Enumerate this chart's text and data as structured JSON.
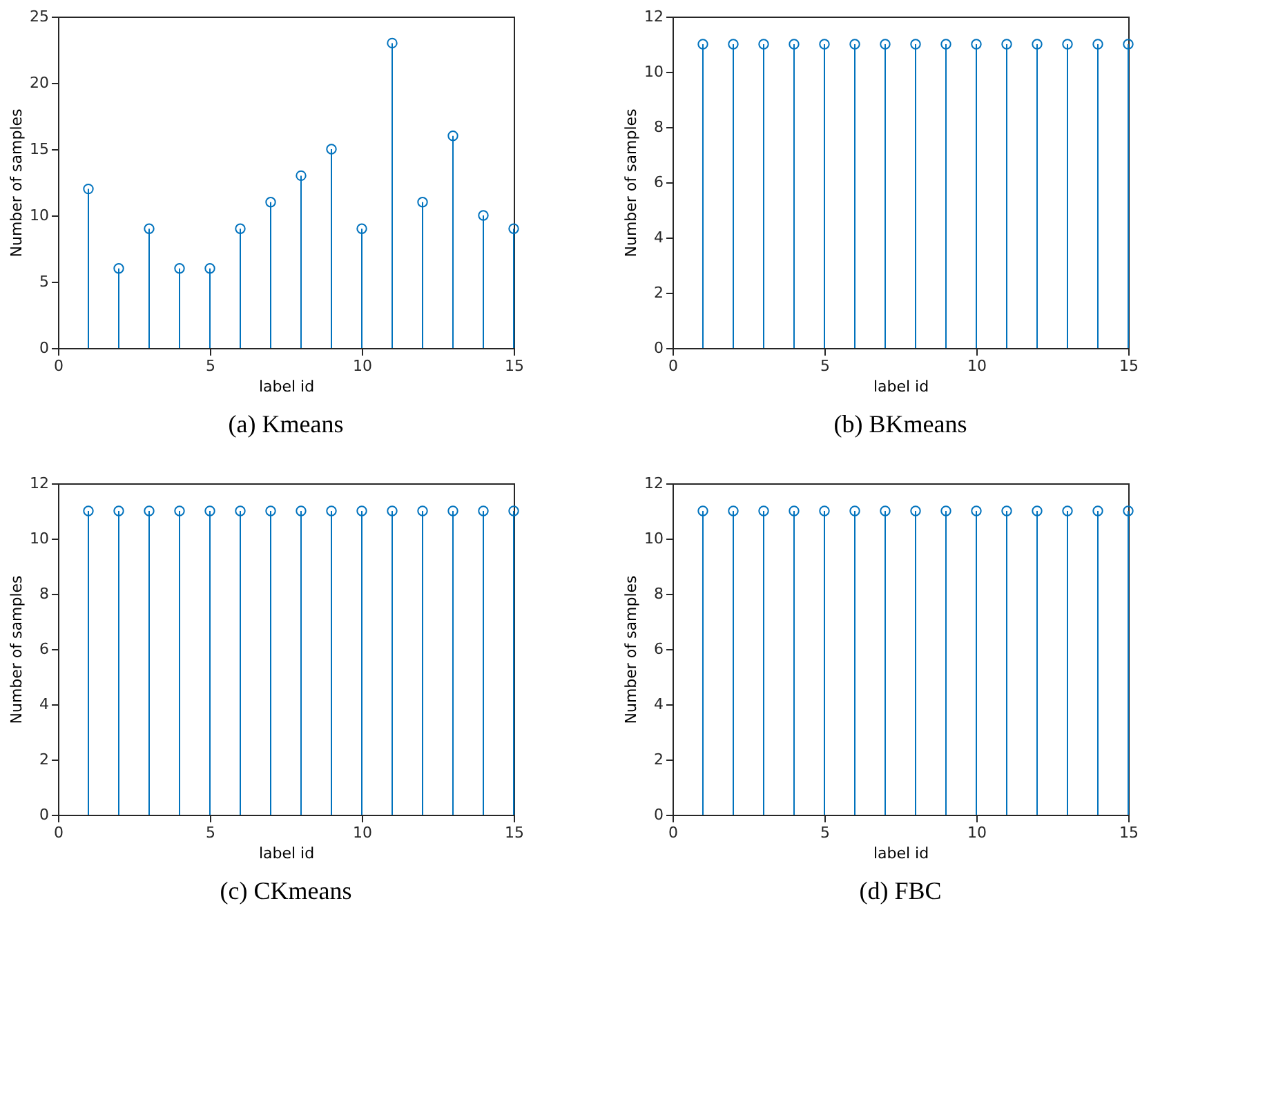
{
  "chart_data": [
    {
      "type": "lollipop",
      "title": "(a) Kmeans",
      "xlabel": "label id",
      "ylabel": "Number of samples",
      "x": [
        1,
        2,
        3,
        4,
        5,
        6,
        7,
        8,
        9,
        10,
        11,
        12,
        13,
        14,
        15
      ],
      "series": [
        {
          "color": "#0072bd",
          "values": [
            12,
            6,
            9,
            6,
            6,
            9,
            11,
            13,
            15,
            9,
            23,
            11,
            16,
            10,
            9
          ]
        }
      ],
      "xlim": [
        0,
        15
      ],
      "xticks": [
        0,
        5,
        10,
        15
      ],
      "ylim": [
        0,
        25
      ],
      "yticks": [
        0,
        5,
        10,
        15,
        20,
        25
      ],
      "marker": "circle"
    },
    {
      "type": "lollipop",
      "title": "(b) BKmeans",
      "xlabel": "label id",
      "ylabel": "Number of samples",
      "x": [
        1,
        2,
        3,
        4,
        5,
        6,
        7,
        8,
        9,
        10,
        11,
        12,
        13,
        14,
        15
      ],
      "series": [
        {
          "color": "#0072bd",
          "values": [
            11,
            11,
            11,
            11,
            11,
            11,
            11,
            11,
            11,
            11,
            11,
            11,
            11,
            11,
            11
          ]
        }
      ],
      "xlim": [
        0,
        15
      ],
      "xticks": [
        0,
        5,
        10,
        15
      ],
      "ylim": [
        0,
        12
      ],
      "yticks": [
        0,
        2,
        4,
        6,
        8,
        10,
        12
      ],
      "marker": "circle"
    },
    {
      "type": "lollipop",
      "title": "(c) CKmeans",
      "xlabel": "label id",
      "ylabel": "Number of samples",
      "x": [
        1,
        2,
        3,
        4,
        5,
        6,
        7,
        8,
        9,
        10,
        11,
        12,
        13,
        14,
        15
      ],
      "series": [
        {
          "color": "#0072bd",
          "values": [
            11,
            11,
            11,
            11,
            11,
            11,
            11,
            11,
            11,
            11,
            11,
            11,
            11,
            11,
            11
          ]
        }
      ],
      "xlim": [
        0,
        15
      ],
      "xticks": [
        0,
        5,
        10,
        15
      ],
      "ylim": [
        0,
        12
      ],
      "yticks": [
        0,
        2,
        4,
        6,
        8,
        10,
        12
      ],
      "marker": "circle"
    },
    {
      "type": "lollipop",
      "title": "(d) FBC",
      "xlabel": "label id",
      "ylabel": "Number of samples",
      "x": [
        1,
        2,
        3,
        4,
        5,
        6,
        7,
        8,
        9,
        10,
        11,
        12,
        13,
        14,
        15
      ],
      "series": [
        {
          "color": "#0072bd",
          "values": [
            11,
            11,
            11,
            11,
            11,
            11,
            11,
            11,
            11,
            11,
            11,
            11,
            11,
            11,
            11
          ]
        }
      ],
      "xlim": [
        0,
        15
      ],
      "xticks": [
        0,
        5,
        10,
        15
      ],
      "ylim": [
        0,
        12
      ],
      "yticks": [
        0,
        2,
        4,
        6,
        8,
        10,
        12
      ],
      "marker": "circle"
    }
  ]
}
